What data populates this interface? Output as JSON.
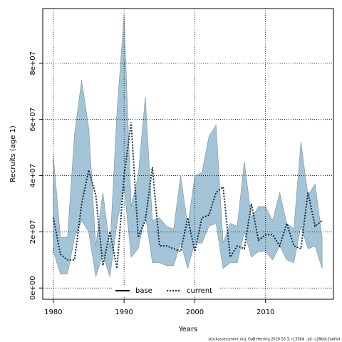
{
  "chart_data": {
    "type": "line_band",
    "x_label": "Years",
    "y_label": "Recruits (age 1)",
    "footer": "stockassessment.org, GoB Herring 2020 SS 3, r13384 , git: c28bdc2a4fad",
    "x": [
      1980,
      1981,
      1982,
      1983,
      1984,
      1985,
      1986,
      1987,
      1988,
      1989,
      1990,
      1991,
      1992,
      1993,
      1994,
      1995,
      1996,
      1997,
      1998,
      1999,
      2000,
      2001,
      2002,
      2003,
      2004,
      2005,
      2006,
      2007,
      2008,
      2009,
      2010,
      2011,
      2012,
      2013,
      2014,
      2015,
      2016,
      2017,
      2018
    ],
    "series": [
      {
        "name": "current",
        "color": "#0b2a4a",
        "values": [
          25000000,
          12000000,
          10000000,
          10000000,
          30000000,
          42000000,
          33000000,
          8000000,
          20000000,
          7000000,
          40000000,
          59000000,
          18000000,
          24000000,
          43000000,
          15000000,
          15000000,
          14000000,
          13000000,
          25000000,
          13000000,
          25000000,
          26000000,
          34000000,
          36000000,
          11000000,
          15000000,
          14000000,
          30000000,
          17000000,
          19000000,
          19000000,
          15000000,
          23000000,
          15000000,
          14000000,
          34000000,
          22000000,
          24000000
        ]
      }
    ],
    "band": {
      "color": "#a3c4d7",
      "upper": [
        47000000,
        18000000,
        18000000,
        55000000,
        74000000,
        57000000,
        15000000,
        34000000,
        14000000,
        63000000,
        97000000,
        29000000,
        40000000,
        68000000,
        24000000,
        25000000,
        22000000,
        21000000,
        40000000,
        22000000,
        40000000,
        41000000,
        54000000,
        58000000,
        16000000,
        23000000,
        22000000,
        45000000,
        25000000,
        29000000,
        29000000,
        24000000,
        34000000,
        23000000,
        21000000,
        52000000,
        33000000,
        37000000,
        18000000
      ],
      "lower": [
        13000000,
        5000000,
        5000000,
        18000000,
        24000000,
        20000000,
        4000000,
        12000000,
        4000000,
        23000000,
        36000000,
        11000000,
        14000000,
        26000000,
        9000000,
        9000000,
        8000000,
        8000000,
        16000000,
        7000000,
        16000000,
        16000000,
        22000000,
        23000000,
        7000000,
        9000000,
        9000000,
        20000000,
        11000000,
        13000000,
        13000000,
        10000000,
        15000000,
        10000000,
        9000000,
        22000000,
        14000000,
        15000000,
        7000000
      ]
    },
    "legend": [
      "base",
      "current"
    ],
    "xlim": [
      1978.5,
      2019.6
    ],
    "ylim": [
      -4000000,
      99500000
    ],
    "xticks": [
      1980,
      1990,
      2000,
      2010
    ],
    "yticks": [
      {
        "value": 0,
        "label": "0e+00"
      },
      {
        "value": 20000000,
        "label": "2e+07"
      },
      {
        "value": 40000000,
        "label": "4e+07"
      },
      {
        "value": 60000000,
        "label": "6e+07"
      },
      {
        "value": 80000000,
        "label": "8e+07"
      }
    ],
    "grid": true
  }
}
